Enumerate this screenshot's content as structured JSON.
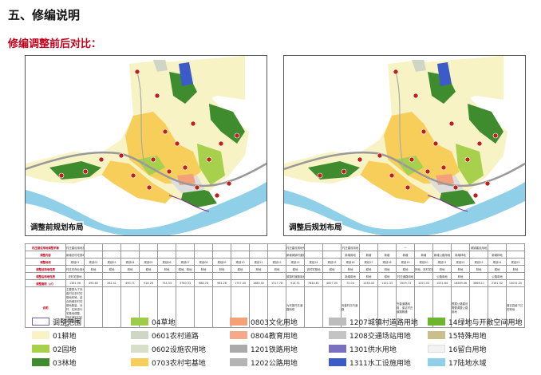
{
  "header": {
    "title": "五、修编说明",
    "subtitle": "修编调整前后对比："
  },
  "maps": {
    "before_label": "调整前规划布局",
    "after_label": "调整后规划布局"
  },
  "table": {
    "rows": [
      [
        "村庄建设用地调整平衡",
        "村庄建设用地指标",
        "",
        "",
        "",
        "",
        "",
        "",
        "",
        "",
        "",
        "",
        "",
        "村庄建设用地外整改后",
        "",
        "",
        "村庄建设用地",
        "",
        "",
        "—",
        "",
        "",
        "",
        "城镇建设用地",
        "",
        ""
      ],
      [
        "调整内容",
        "新增农村宅基地",
        "",
        "",
        "",
        "",
        "",
        "",
        "",
        "",
        "",
        "",
        "",
        "新增城镇村道路用地",
        "",
        "",
        "新增用地",
        "新增",
        "新增",
        "新增",
        "新增",
        "新增公路用地",
        "新增林地",
        "",
        "新增林地",
        ""
      ],
      [
        "调整地块",
        "规划01",
        "规划02",
        "规划03",
        "规划04",
        "规划05",
        "规划06",
        "规划07",
        "规划08",
        "规划09",
        "规划10",
        "规划11",
        "规划12",
        "规划13",
        "规划14",
        "规划15",
        "规划16",
        "规划17",
        "规划18",
        "规划19",
        "规划20",
        "规划21",
        "规划22",
        "规划23",
        "规划24",
        "规划25"
      ],
      [
        "调整前用地性质",
        "村庄内商业用地",
        "林地",
        "耕地",
        "林地",
        "耕地",
        "林地",
        "耕地、林地",
        "林地",
        "林地",
        "耕地",
        "林地",
        "林地",
        "耕地",
        "农村宅基地",
        "耕地",
        "林地",
        "耕地",
        "林地",
        "耕地",
        "林地、农村宅基地",
        "林地",
        "林地",
        "林地",
        "耕地",
        "林地"
      ],
      [
        "调整后用地性质",
        "农村宅基地",
        "",
        "",
        "",
        "",
        "",
        "",
        "",
        "",
        "",
        "",
        "",
        "城镇村道路用地",
        "",
        "",
        "新增用地",
        "林地",
        "耕地",
        "村庄道路用地",
        "",
        "公路用地",
        "林地",
        "",
        "公路用地",
        ""
      ],
      [
        "调整面积（㎡）",
        "1361.96",
        "490.60",
        "262.41",
        "490.71",
        "918.26",
        "733.33",
        "3760.33",
        "688.76",
        "981.28",
        "1757.00",
        "1680.02",
        "1517.78",
        "914.51",
        "7844.61",
        "4007.00",
        "72.04",
        "1038.43",
        "1102.33",
        "3509.73",
        "1251.03",
        "1031.84",
        "18289.06",
        "3668.11",
        "2181.52",
        "15031.20"
      ],
      [
        "说明",
        "主要是为了完善村庄农村宅基地布局，结合新增农村宅基地数量，对村、住房进行宅基地调整，保证满足村民新增建房需求。",
        "",
        "",
        "",
        "",
        "",
        "",
        "",
        "",
        "",
        "",
        "",
        "为完善村庄道路网络",
        "",
        "",
        "完善村庄内道路",
        "",
        "",
        "完善道路网络，保证村庄道路畅通",
        "",
        "",
        "根据公路建设需要调整公路用地",
        "",
        "",
        "落实县级下达的林地"
      ]
    ]
  },
  "legend": {
    "items": [
      {
        "code": "调整范围",
        "name": "调整范围",
        "color": "#ffffff",
        "border": "#6b5fa8"
      },
      {
        "code": "01",
        "name": "01耕地",
        "color": "#f8f3c4",
        "border": "#f8f3c4"
      },
      {
        "code": "02",
        "name": "02园地",
        "color": "#a7d14c",
        "border": "#a7d14c"
      },
      {
        "code": "03",
        "name": "03林地",
        "color": "#3e8c2e",
        "border": "#3e8c2e"
      },
      {
        "code": "04",
        "name": "04草地",
        "color": "#9ccc4a",
        "border": "#9ccc4a"
      },
      {
        "code": "0601",
        "name": "0601农村道路",
        "color": "#cfd6c6",
        "border": "#cfd6c6"
      },
      {
        "code": "0602",
        "name": "0602设施农用地",
        "color": "#d8dfc8",
        "border": "#d8dfc8"
      },
      {
        "code": "0703",
        "name": "0703农村宅基地",
        "color": "#f7ce5a",
        "border": "#f7ce5a"
      },
      {
        "code": "0803",
        "name": "0803文化用地",
        "color": "#f4a078",
        "border": "#f4a078"
      },
      {
        "code": "0804",
        "name": "0804教育用地",
        "color": "#f5a98a",
        "border": "#f5a98a"
      },
      {
        "code": "1201",
        "name": "1201铁路用地",
        "color": "#aaaaaa",
        "border": "#aaaaaa"
      },
      {
        "code": "1202",
        "name": "1202公路用地",
        "color": "#b4b4b4",
        "border": "#b4b4b4"
      },
      {
        "code": "1207",
        "name": "1207城镇村道路用地",
        "color": "#bdbdbd",
        "border": "#bdbdbd"
      },
      {
        "code": "1208",
        "name": "1208交通场站用地",
        "color": "#c4c4c4",
        "border": "#c4c4c4"
      },
      {
        "code": "1301",
        "name": "1301供水用地",
        "color": "#7b6fc0",
        "border": "#7b6fc0"
      },
      {
        "code": "1311",
        "name": "1311水工设施用地",
        "color": "#3b5bc8",
        "border": "#3b5bc8"
      },
      {
        "code": "14",
        "name": "14绿地与开敞空间用地",
        "color": "#6eb52f",
        "border": "#6eb52f"
      },
      {
        "code": "15",
        "name": "15特殊用地",
        "color": "#c8bf8c",
        "border": "#c8bf8c"
      },
      {
        "code": "16",
        "name": "16留白用地",
        "color": "#f2f2f2",
        "border": "#dddddd"
      },
      {
        "code": "17",
        "name": "17陆地水域",
        "color": "#8fd0e8",
        "border": "#8fd0e8"
      }
    ]
  }
}
